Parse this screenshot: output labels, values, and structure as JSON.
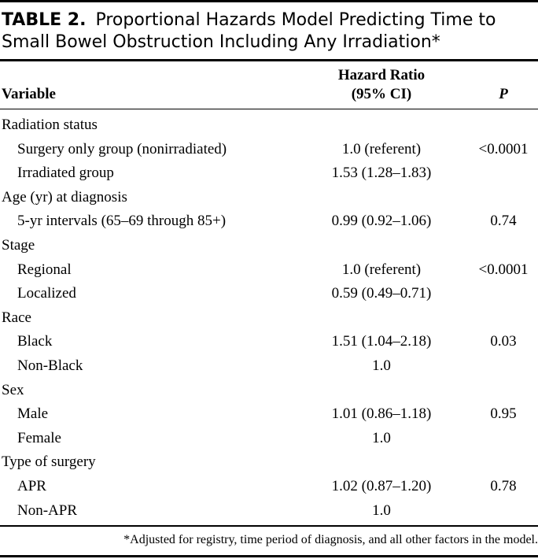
{
  "table": {
    "label": "TABLE 2.",
    "title_line1": "Proportional Hazards Model Predicting Time to",
    "title_line2": "Small Bowel Obstruction Including Any Irradiation*",
    "headers": {
      "variable": "Variable",
      "hazard_ratio_line1": "Hazard Ratio",
      "hazard_ratio_line2": "(95% CI)",
      "p": "P"
    },
    "rows": [
      {
        "variable": "Radiation status",
        "hr": "",
        "p": ""
      },
      {
        "variable": "Surgery only group (nonirradiated)",
        "hr": "1.0 (referent)",
        "p": "<0.0001"
      },
      {
        "variable": "Irradiated group",
        "hr": "1.53 (1.28–1.83)",
        "p": ""
      },
      {
        "variable": "Age (yr) at diagnosis",
        "hr": "",
        "p": ""
      },
      {
        "variable": "5-yr intervals (65–69 through 85+)",
        "hr": "0.99 (0.92–1.06)",
        "p": "0.74"
      },
      {
        "variable": "Stage",
        "hr": "",
        "p": ""
      },
      {
        "variable": "Regional",
        "hr": "1.0 (referent)",
        "p": "<0.0001"
      },
      {
        "variable": "Localized",
        "hr": "0.59 (0.49–0.71)",
        "p": ""
      },
      {
        "variable": "Race",
        "hr": "",
        "p": ""
      },
      {
        "variable": "Black",
        "hr": "1.51 (1.04–2.18)",
        "p": "0.03"
      },
      {
        "variable": "Non-Black",
        "hr": "1.0",
        "p": ""
      },
      {
        "variable": "Sex",
        "hr": "",
        "p": ""
      },
      {
        "variable": "Male",
        "hr": "1.01 (0.86–1.18)",
        "p": "0.95"
      },
      {
        "variable": "Female",
        "hr": "1.0",
        "p": ""
      },
      {
        "variable": "Type of surgery",
        "hr": "",
        "p": ""
      },
      {
        "variable": "APR",
        "hr": "1.02 (0.87–1.20)",
        "p": "0.78"
      },
      {
        "variable": "Non-APR",
        "hr": "1.0",
        "p": ""
      }
    ],
    "footnote": "*Adjusted for registry, time period of diagnosis, and all other factors in the model."
  }
}
